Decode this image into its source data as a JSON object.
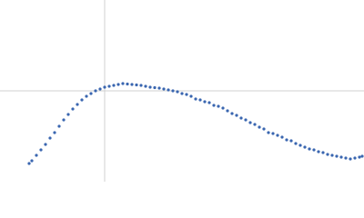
{
  "chart_data": {
    "type": "scatter",
    "color": "#3a66b0",
    "grid": true,
    "xlim": [
      0,
      4
    ],
    "ylim": [
      0,
      2
    ],
    "xticks": [
      1.15
    ],
    "yticks": [
      1.0
    ],
    "x": [
      0.32,
      0.35,
      0.4,
      0.45,
      0.5,
      0.55,
      0.6,
      0.65,
      0.7,
      0.75,
      0.8,
      0.85,
      0.9,
      0.95,
      1.0,
      1.05,
      1.1,
      1.15,
      1.2,
      1.25,
      1.3,
      1.35,
      1.4,
      1.45,
      1.5,
      1.55,
      1.6,
      1.65,
      1.7,
      1.75,
      1.8,
      1.85,
      1.9,
      1.95,
      2.0,
      2.05,
      2.1,
      2.15,
      2.2,
      2.25,
      2.3,
      2.35,
      2.4,
      2.45,
      2.5,
      2.55,
      2.6,
      2.65,
      2.7,
      2.75,
      2.8,
      2.85,
      2.9,
      2.95,
      3.0,
      3.05,
      3.1,
      3.15,
      3.2,
      3.25,
      3.3,
      3.35,
      3.4,
      3.45,
      3.5,
      3.55,
      3.6,
      3.65,
      3.7,
      3.75,
      3.8,
      3.85,
      3.9,
      3.95,
      3.98
    ],
    "values": [
      0.2,
      0.23,
      0.29,
      0.35,
      0.41,
      0.48,
      0.54,
      0.61,
      0.68,
      0.74,
      0.8,
      0.85,
      0.9,
      0.94,
      0.97,
      1.0,
      1.02,
      1.04,
      1.05,
      1.06,
      1.07,
      1.08,
      1.075,
      1.07,
      1.065,
      1.06,
      1.05,
      1.04,
      1.035,
      1.03,
      1.02,
      1.01,
      1.0,
      0.99,
      0.97,
      0.96,
      0.94,
      0.91,
      0.9,
      0.88,
      0.87,
      0.84,
      0.83,
      0.81,
      0.78,
      0.75,
      0.73,
      0.7,
      0.68,
      0.65,
      0.63,
      0.6,
      0.58,
      0.54,
      0.53,
      0.51,
      0.49,
      0.46,
      0.45,
      0.42,
      0.4,
      0.38,
      0.36,
      0.35,
      0.33,
      0.32,
      0.3,
      0.29,
      0.28,
      0.27,
      0.26,
      0.25,
      0.26,
      0.27,
      0.28
    ]
  }
}
